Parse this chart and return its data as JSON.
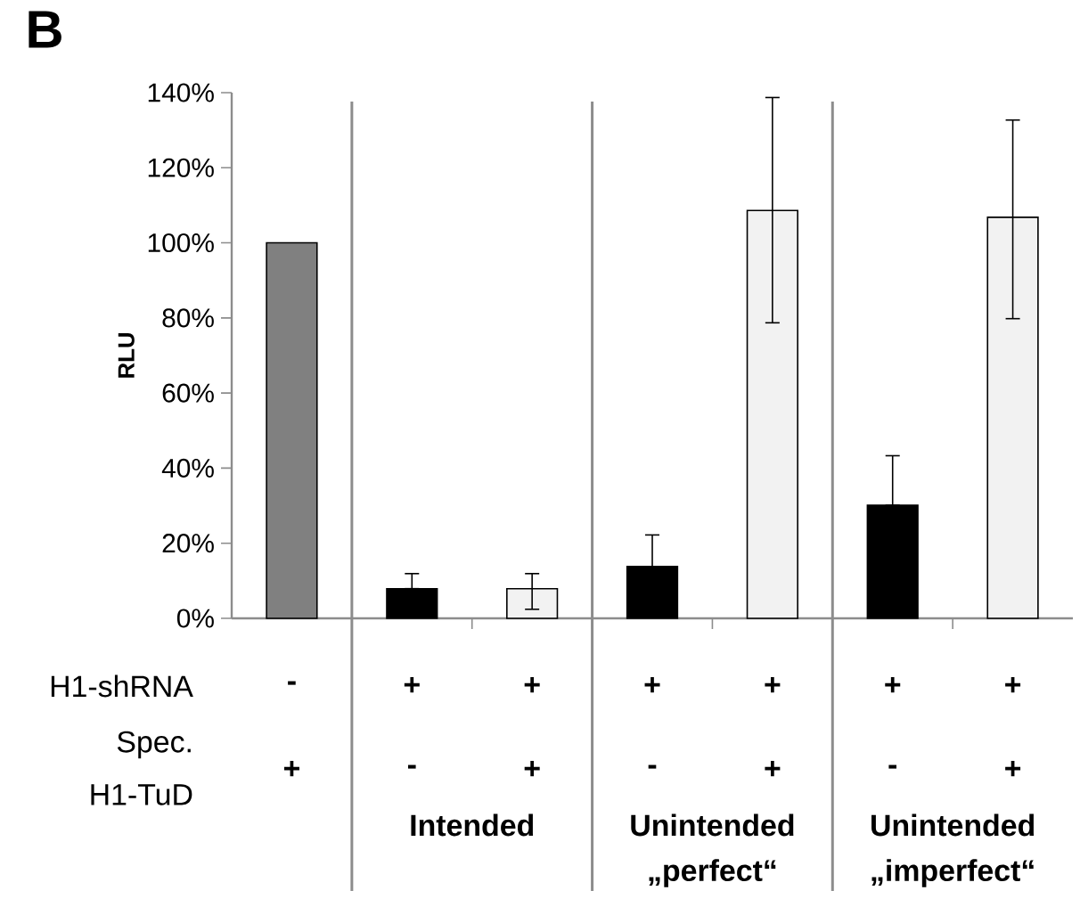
{
  "chart_data": {
    "type": "bar",
    "title": "B",
    "ylabel": "RLU",
    "categories": [
      null,
      null,
      null,
      null,
      null,
      null,
      null
    ],
    "values": [
      100,
      7.9,
      7.9,
      13.8,
      108.6,
      30.1,
      106.8
    ],
    "colors": [
      "#808080",
      "#000000",
      "#f2f2f2",
      "#000000",
      "#f2f2f2",
      "#000000",
      "#f2f2f2"
    ],
    "errors": [
      null,
      [
        7.9,
        11.9
      ],
      [
        2.4,
        11.9
      ],
      [
        13.8,
        22.2
      ],
      [
        78.7,
        138.7
      ],
      [
        30.1,
        43.3
      ],
      [
        79.8,
        132.7
      ]
    ],
    "ylim": [
      0,
      140
    ],
    "yticks": [
      {
        "value": 0,
        "label": "0%"
      },
      {
        "value": 20,
        "label": "20%"
      },
      {
        "value": 40,
        "label": "40%"
      },
      {
        "value": 60,
        "label": "60%"
      },
      {
        "value": 80,
        "label": "80%"
      },
      {
        "value": 100,
        "label": "100%"
      },
      {
        "value": 120,
        "label": "120%"
      },
      {
        "value": 140,
        "label": "140%"
      }
    ],
    "grid": false,
    "annotations": [
      "H1-shRNA",
      "-",
      "+",
      "+",
      "+",
      "+",
      "+",
      "+",
      "Spec.",
      "H1-TuD",
      "+",
      "-",
      "+",
      "-",
      "+",
      "-",
      "+",
      "Intended",
      "Unintended",
      "„perfect“",
      "Unintended",
      "„imperfect“"
    ]
  }
}
